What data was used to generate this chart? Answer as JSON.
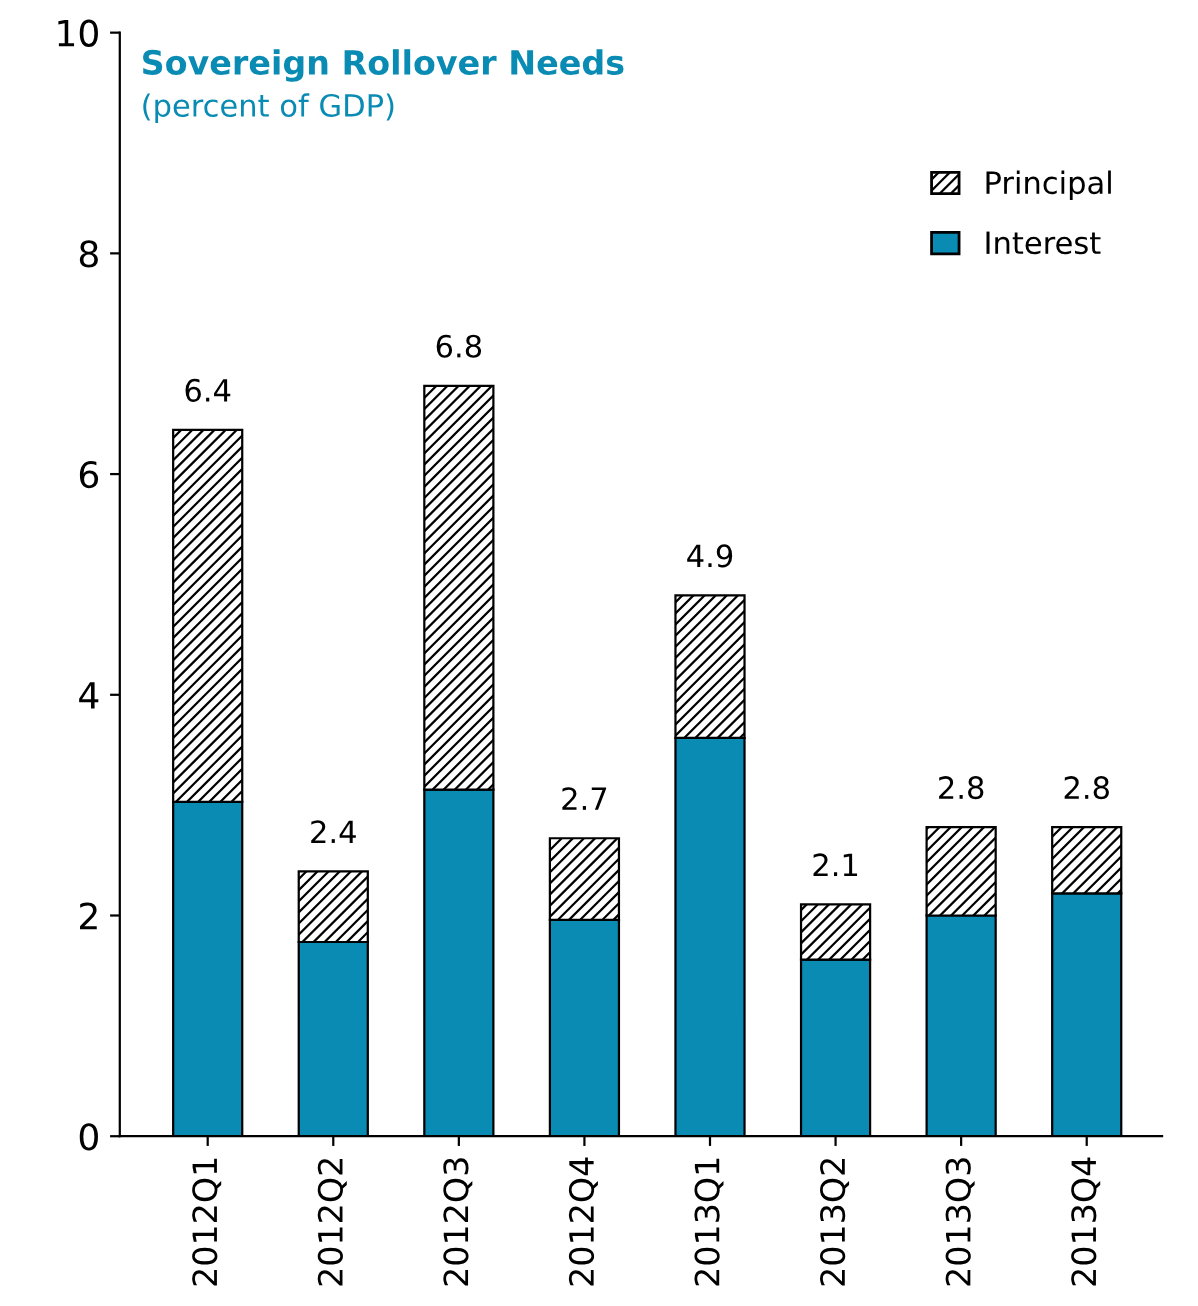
{
  "chart_data": {
    "type": "bar",
    "title": "Sovereign Rollover Needs",
    "subtitle": "(percent of GDP)",
    "categories": [
      "2012Q1",
      "2012Q2",
      "2012Q3",
      "2012Q4",
      "2013Q1",
      "2013Q2",
      "2013Q3",
      "2013Q4"
    ],
    "stacked": true,
    "series": [
      {
        "name": "Interest",
        "color": "#0a8bb3",
        "values": [
          3.03,
          1.76,
          3.14,
          1.96,
          3.61,
          1.6,
          2.0,
          2.2
        ]
      },
      {
        "name": "Principal",
        "color": "#000000",
        "values": [
          3.37,
          0.64,
          3.66,
          0.74,
          1.29,
          0.5,
          0.8,
          0.6
        ]
      }
    ],
    "totals": [
      "6.4",
      "2.4",
      "6.8",
      "2.7",
      "4.9",
      "2.1",
      "2.8",
      "2.8"
    ],
    "ylim": [
      0,
      10
    ],
    "yticks": [
      0,
      2,
      4,
      6,
      8,
      10
    ],
    "grid": false,
    "legend": "top right"
  }
}
